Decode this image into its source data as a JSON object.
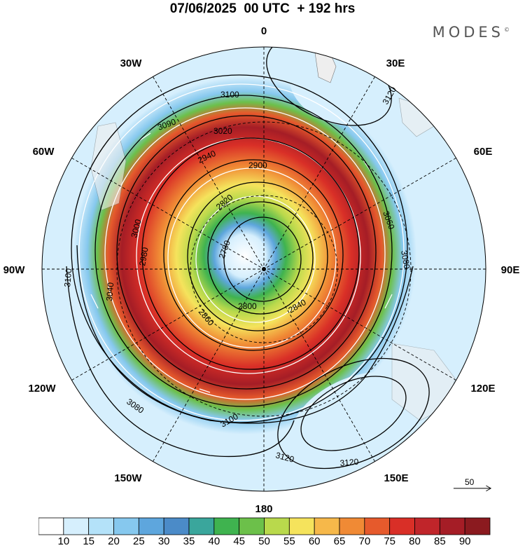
{
  "title": "07/06/2025  00 UTC  + 192 hrs",
  "brand": "MODES",
  "brand_mark": "©",
  "longitude_labels": [
    "0",
    "30E",
    "60E",
    "90E",
    "120E",
    "150E",
    "180",
    "150W",
    "120W",
    "90W",
    "60W",
    "30W"
  ],
  "contour_labels": [
    "3100",
    "3120",
    "3090",
    "3020",
    "2940",
    "2900",
    "2820",
    "2780",
    "3060",
    "3080",
    "3000",
    "2980",
    "2860",
    "2800",
    "2840",
    "3040",
    "3100",
    "3080",
    "3120",
    "3120",
    "3100"
  ],
  "colorbar": {
    "labels": [
      "10",
      "15",
      "20",
      "25",
      "30",
      "35",
      "40",
      "45",
      "50",
      "55",
      "60",
      "65",
      "70",
      "75",
      "80",
      "85",
      "90"
    ],
    "colors": [
      "#ffffff",
      "#d6effd",
      "#b4e2f9",
      "#86c8ee",
      "#5ea6dd",
      "#4b8bc8",
      "#3aa69c",
      "#3fb34f",
      "#6cc04a",
      "#b9d94c",
      "#f5e35c",
      "#f6b84a",
      "#f08a35",
      "#e65a2c",
      "#d92f27",
      "#c0252a",
      "#a51d26",
      "#8b1a1f"
    ]
  },
  "vector_reference": "50",
  "colors": {
    "land": "#eeeeee",
    "contour": "#000000",
    "streamline": "#ffffff"
  }
}
